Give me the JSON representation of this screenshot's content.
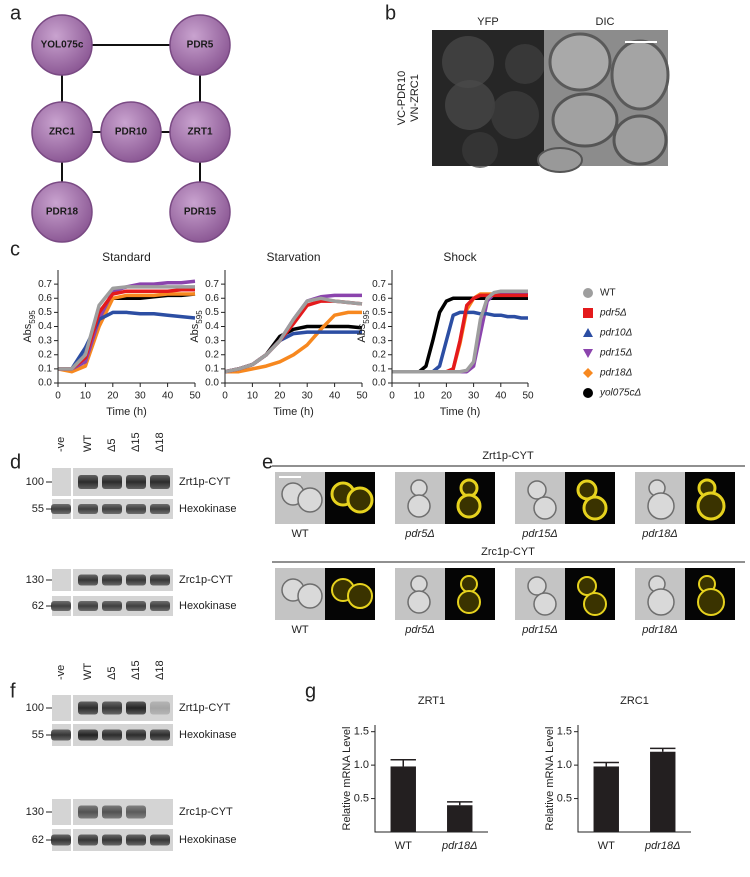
{
  "panel_letters": [
    "a",
    "b",
    "c",
    "d",
    "e",
    "f",
    "g"
  ],
  "a": {
    "nodes": [
      "YOL075c",
      "PDR5",
      "ZRC1",
      "PDR10",
      "ZRT1",
      "PDR18",
      "PDR15"
    ]
  },
  "b": {
    "channels": [
      "YFP",
      "DIC"
    ],
    "constructs": [
      "VC-PDR10",
      "VN-ZRC1"
    ]
  },
  "d": {
    "columns": [
      "-ve",
      "WT",
      "Δ5",
      "Δ15",
      "Δ18"
    ],
    "rows": [
      {
        "marker": "100",
        "label": "Zrt1p-CYT"
      },
      {
        "marker": "55",
        "label": "Hexokinase"
      },
      {
        "marker": "130",
        "label": "Zrc1p-CYT"
      },
      {
        "marker": "62",
        "label": "Hexokinase"
      }
    ]
  },
  "e": {
    "groups": [
      {
        "title": "Zrt1p-CYT",
        "strains": [
          "WT",
          "pdr5Δ",
          "pdr15Δ",
          "pdr18Δ"
        ]
      },
      {
        "title": "Zrc1p-CYT",
        "strains": [
          "WT",
          "pdr5Δ",
          "pdr15Δ",
          "pdr18Δ"
        ]
      }
    ]
  },
  "f": {
    "columns": [
      "-ve",
      "WT",
      "Δ5",
      "Δ15",
      "Δ18"
    ],
    "rows": [
      {
        "marker": "100",
        "label": "Zrt1p-CYT"
      },
      {
        "marker": "55",
        "label": "Hexokinase"
      },
      {
        "marker": "130",
        "label": "Zrc1p-CYT"
      },
      {
        "marker": "62",
        "label": "Hexokinase"
      }
    ]
  },
  "chart_data": [
    {
      "type": "line",
      "title": "Standard",
      "x_label": "Time (h)",
      "y_label": "Abs",
      "y_label_sub": "595",
      "x": [
        0,
        5,
        10,
        15,
        20,
        25,
        30,
        35,
        40,
        45,
        50
      ],
      "xlim": [
        0,
        50
      ],
      "xticks": [
        0,
        10,
        20,
        30,
        40,
        50
      ],
      "ylim": [
        0,
        0.8
      ],
      "yticks": [
        {
          "value": 0,
          "label": "0.0"
        },
        0.1,
        0.2,
        0.3,
        0.4,
        0.5,
        0.6,
        0.7
      ],
      "series": [
        {
          "name": "WT",
          "color": "#9e9e9e",
          "marker": "circle",
          "values": [
            0.1,
            0.1,
            0.2,
            0.55,
            0.67,
            0.68,
            0.68,
            0.68,
            0.68,
            0.68,
            0.68
          ]
        },
        {
          "name": "pdr5Δ",
          "color": "#e41a1c",
          "marker": "square",
          "values": [
            0.1,
            0.1,
            0.18,
            0.5,
            0.63,
            0.65,
            0.65,
            0.65,
            0.65,
            0.66,
            0.66
          ]
        },
        {
          "name": "pdr10Δ",
          "color": "#2c4ea3",
          "marker": "triangle-up",
          "values": [
            0.1,
            0.1,
            0.25,
            0.45,
            0.5,
            0.5,
            0.49,
            0.49,
            0.48,
            0.47,
            0.46
          ]
        },
        {
          "name": "pdr15Δ",
          "color": "#8b44ad",
          "marker": "triangle-down",
          "values": [
            0.1,
            0.1,
            0.15,
            0.45,
            0.65,
            0.68,
            0.7,
            0.7,
            0.71,
            0.71,
            0.72
          ]
        },
        {
          "name": "pdr18Δ",
          "color": "#f7881f",
          "marker": "diamond",
          "values": [
            0.1,
            0.08,
            0.12,
            0.4,
            0.6,
            0.62,
            0.62,
            0.62,
            0.63,
            0.63,
            0.63
          ]
        },
        {
          "name": "yol075cΔ",
          "color": "#000000",
          "marker": "circle",
          "values": [
            0.1,
            0.1,
            0.2,
            0.5,
            0.6,
            0.6,
            0.6,
            0.61,
            0.62,
            0.62,
            0.63
          ]
        }
      ]
    },
    {
      "type": "line",
      "title": "Starvation",
      "x_label": "Time (h)",
      "y_label": "Abs",
      "y_label_sub": "595",
      "x": [
        0,
        5,
        10,
        15,
        20,
        25,
        30,
        35,
        40,
        45,
        50
      ],
      "xlim": [
        0,
        50
      ],
      "xticks": [
        0,
        10,
        20,
        30,
        40,
        50
      ],
      "ylim": [
        0,
        0.8
      ],
      "yticks": [
        {
          "value": 0,
          "label": "0.0"
        },
        0.1,
        0.2,
        0.3,
        0.4,
        0.5,
        0.6,
        0.7
      ],
      "series": [
        {
          "values": [
            0.08,
            0.1,
            0.13,
            0.2,
            0.3,
            0.45,
            0.58,
            0.6,
            0.58,
            0.57,
            0.56
          ]
        },
        {
          "values": [
            0.08,
            0.1,
            0.13,
            0.2,
            0.3,
            0.42,
            0.55,
            0.58,
            0.58,
            0.57,
            0.56
          ]
        },
        {
          "values": [
            0.08,
            0.1,
            0.13,
            0.2,
            0.3,
            0.35,
            0.36,
            0.36,
            0.36,
            0.36,
            0.36
          ]
        },
        {
          "values": [
            0.08,
            0.1,
            0.13,
            0.2,
            0.3,
            0.45,
            0.58,
            0.61,
            0.62,
            0.62,
            0.62
          ]
        },
        {
          "values": [
            0.08,
            0.08,
            0.1,
            0.12,
            0.15,
            0.2,
            0.27,
            0.38,
            0.48,
            0.5,
            0.5
          ]
        },
        {
          "values": [
            0.08,
            0.1,
            0.13,
            0.2,
            0.33,
            0.38,
            0.4,
            0.4,
            0.4,
            0.4,
            0.39
          ]
        }
      ]
    },
    {
      "type": "line",
      "title": "Shock",
      "x_label": "Time (h)",
      "y_label": "Abs",
      "y_label_sub": "595",
      "x": [
        0,
        2.5,
        5,
        7.5,
        10,
        12.5,
        15,
        17.5,
        20,
        22.5,
        25,
        27.5,
        30,
        32.5,
        35,
        37.5,
        40,
        42.5,
        45,
        47.5,
        50
      ],
      "xlim": [
        0,
        50
      ],
      "xticks": [
        0,
        10,
        20,
        30,
        40,
        50
      ],
      "ylim": [
        0,
        0.8
      ],
      "yticks": [
        {
          "value": 0,
          "label": "0.0"
        },
        0.1,
        0.2,
        0.3,
        0.4,
        0.5,
        0.6,
        0.7
      ],
      "series": [
        {
          "values": [
            0.08,
            0.08,
            0.08,
            0.08,
            0.08,
            0.08,
            0.08,
            0.08,
            0.08,
            0.08,
            0.08,
            0.09,
            0.15,
            0.45,
            0.6,
            0.64,
            0.65,
            0.65,
            0.65,
            0.65,
            0.65
          ]
        },
        {
          "values": [
            0.08,
            0.08,
            0.08,
            0.08,
            0.08,
            0.08,
            0.08,
            0.08,
            0.08,
            0.1,
            0.3,
            0.55,
            0.6,
            0.62,
            0.62,
            0.62,
            0.62,
            0.62,
            0.62,
            0.62,
            0.62
          ]
        },
        {
          "values": [
            0.08,
            0.08,
            0.08,
            0.08,
            0.08,
            0.08,
            0.08,
            0.12,
            0.3,
            0.48,
            0.5,
            0.5,
            0.5,
            0.49,
            0.49,
            0.48,
            0.48,
            0.47,
            0.47,
            0.46,
            0.46
          ]
        },
        {
          "values": [
            0.08,
            0.08,
            0.08,
            0.08,
            0.08,
            0.08,
            0.08,
            0.08,
            0.08,
            0.08,
            0.08,
            0.08,
            0.12,
            0.35,
            0.58,
            0.63,
            0.64,
            0.64,
            0.64,
            0.64,
            0.64
          ]
        },
        {
          "values": [
            0.08,
            0.08,
            0.08,
            0.08,
            0.08,
            0.08,
            0.08,
            0.08,
            0.08,
            0.1,
            0.28,
            0.52,
            0.6,
            0.63,
            0.63,
            0.63,
            0.63,
            0.63,
            0.63,
            0.63,
            0.63
          ]
        },
        {
          "values": [
            0.08,
            0.08,
            0.08,
            0.08,
            0.08,
            0.12,
            0.3,
            0.5,
            0.58,
            0.6,
            0.6,
            0.6,
            0.6,
            0.6,
            0.6,
            0.6,
            0.6,
            0.6,
            0.6,
            0.6,
            0.6
          ]
        }
      ]
    },
    {
      "type": "bar",
      "title": "ZRT1",
      "y_label": "Relative mRNA Level",
      "categories": [
        "WT",
        "pdr18Δ"
      ],
      "values": [
        0.98,
        0.4
      ],
      "errors": [
        0.1,
        0.05
      ],
      "color": "#231f20",
      "ylim": [
        0,
        1.6
      ],
      "yticks": [
        0.5,
        {
          "value": 1,
          "label": "1.0"
        },
        1.5
      ]
    },
    {
      "type": "bar",
      "title": "ZRC1",
      "y_label": "Relative mRNA Level",
      "categories": [
        "WT",
        "pdr18Δ"
      ],
      "values": [
        0.98,
        1.2
      ],
      "errors": [
        0.06,
        0.05
      ],
      "color": "#231f20",
      "ylim": [
        0,
        1.6
      ],
      "yticks": [
        0.5,
        {
          "value": 1,
          "label": "1.0"
        },
        1.5
      ]
    }
  ]
}
